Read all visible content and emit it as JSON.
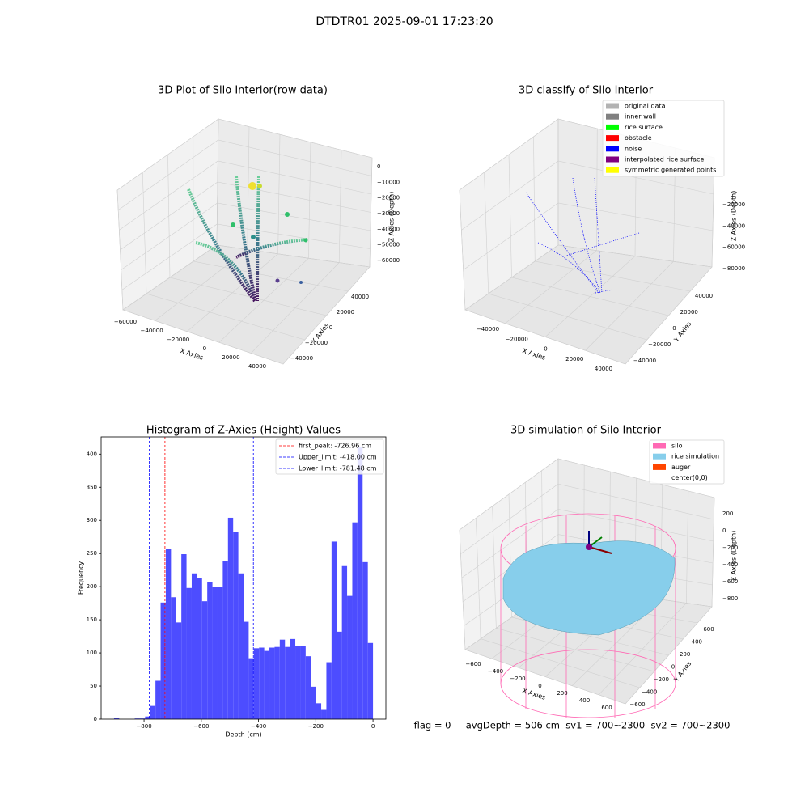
{
  "suptitle": "DTDTR01 2025-09-01 17:23:20",
  "status_text": "flag = 0     avgDepth = 506 cm  sv1 = 700~2300  sv2 = 700~2300",
  "chart_data": [
    {
      "type": "3d",
      "title": "3D Plot of Silo Interior(row data)",
      "xlabel": "X Axies",
      "ylabel": "Y Axies",
      "zlabel": "Z Axies (Depth)",
      "xticks": [
        {
          "value": -60000,
          "label": "−60000"
        },
        {
          "value": -40000,
          "label": "−40000"
        },
        {
          "value": -20000,
          "label": "−20000"
        },
        0,
        20000,
        40000
      ],
      "yticks": [
        {
          "value": -40000,
          "label": "−40000"
        },
        {
          "value": -20000,
          "label": "−20000"
        },
        0,
        20000,
        40000
      ],
      "zticks": [
        0,
        {
          "value": -10000,
          "label": "−10000"
        },
        {
          "value": -20000,
          "label": "−20000"
        },
        {
          "value": -30000,
          "label": "−30000"
        },
        {
          "value": -40000,
          "label": "−40000"
        },
        {
          "value": -50000,
          "label": "−50000"
        },
        {
          "value": -60000,
          "label": "−60000"
        }
      ]
    },
    {
      "type": "3d",
      "title": "3D classify of Silo Interior",
      "xlabel": "X Axies",
      "ylabel": "Y Axies",
      "zlabel": "Z Axies (Depth)",
      "xticks": [
        {
          "value": -40000,
          "label": "−40000"
        },
        {
          "value": -20000,
          "label": "−20000"
        },
        0,
        20000,
        40000
      ],
      "yticks": [
        {
          "value": -40000,
          "label": "−40000"
        },
        {
          "value": -20000,
          "label": "−20000"
        },
        0,
        20000,
        40000
      ],
      "zticks": [
        {
          "value": -20000,
          "label": "−20000"
        },
        {
          "value": -40000,
          "label": "−40000"
        },
        {
          "value": -60000,
          "label": "−60000"
        },
        {
          "value": -80000,
          "label": "−80000"
        }
      ],
      "legend": [
        {
          "name": "original data",
          "color": "#b3b3b3"
        },
        {
          "name": "inner wall",
          "color": "#808080"
        },
        {
          "name": "rice surface",
          "color": "#00ff00"
        },
        {
          "name": "obstacle",
          "color": "#ff0000"
        },
        {
          "name": "noise",
          "color": "#0000ff"
        },
        {
          "name": "interpolated rice surface",
          "color": "#800080"
        },
        {
          "name": "symmetric generated points",
          "color": "#ffff00"
        }
      ]
    },
    {
      "type": "histogram",
      "title": "Histogram of Z-Axies (Height) Values",
      "xlabel": "Depth (cm)",
      "ylabel": "Frequency",
      "color": "#4d4dff",
      "bins": [
        -905,
        -886.9,
        -868.8,
        -850.7,
        -832.6,
        -814.5,
        -796.4,
        -778.3,
        -760.2,
        -742.1,
        -724,
        -705.9,
        -687.8,
        -669.7,
        -651.6,
        -633.5,
        -615.4,
        -597.3,
        -579.2,
        -561.1,
        -543,
        -524.9,
        -506.8,
        -488.7,
        -470.6,
        -452.5,
        -434.4,
        -416.3,
        -398.2,
        -380.1,
        -362,
        -343.9,
        -325.8,
        -307.7,
        -289.6,
        -271.5,
        -253.4,
        -235.3,
        -217.2,
        -199.1,
        -181,
        -162.9,
        -144.8,
        -126.7,
        -108.6,
        -90.5,
        -72.4,
        -54.3,
        -36.2,
        -18.1,
        0
      ],
      "values": [
        2,
        0,
        0,
        0,
        1,
        1,
        4,
        20,
        58,
        176,
        257,
        184,
        146,
        249,
        198,
        220,
        213,
        178,
        207,
        200,
        200,
        239,
        304,
        283,
        220,
        147,
        92,
        107,
        108,
        103,
        108,
        109,
        120,
        109,
        121,
        110,
        111,
        95,
        49,
        24,
        14,
        86,
        268,
        132,
        231,
        186,
        297,
        410,
        237,
        115
      ],
      "xlim": [
        -950,
        45
      ],
      "ylim": [
        0,
        426
      ],
      "xticks": [
        {
          "value": -800,
          "label": "−800"
        },
        {
          "value": -600,
          "label": "−600"
        },
        {
          "value": -400,
          "label": "−400"
        },
        {
          "value": -200,
          "label": "−200"
        },
        0
      ],
      "yticks": [
        0,
        50,
        100,
        150,
        200,
        250,
        300,
        350,
        400
      ],
      "vlines": [
        {
          "name": "first_peak: -726.96 cm",
          "value": -726.96,
          "color": "#ff0000"
        },
        {
          "name": "Upper_limit: -418.00 cm",
          "value": -418,
          "color": "#0000ff"
        },
        {
          "name": "Lower_limit: -781.48 cm",
          "value": -781.48,
          "color": "#0000ff"
        }
      ]
    },
    {
      "type": "3d",
      "title": "3D simulation of Silo Interior",
      "xlabel": "X Axies",
      "ylabel": "Y Axies",
      "zlabel": "Z Axies (Depth)",
      "xticks": [
        {
          "value": -600,
          "label": "−600"
        },
        {
          "value": -400,
          "label": "−400"
        },
        {
          "value": -200,
          "label": "−200"
        },
        0,
        200,
        400,
        600
      ],
      "yticks": [
        {
          "value": -600,
          "label": "−600"
        },
        {
          "value": -400,
          "label": "−400"
        },
        {
          "value": -200,
          "label": "−200"
        },
        0,
        200,
        400,
        600
      ],
      "zticks": [
        200,
        0,
        {
          "value": -200,
          "label": "−200"
        },
        {
          "value": -400,
          "label": "−400"
        },
        {
          "value": -600,
          "label": "−600"
        },
        {
          "value": -800,
          "label": "−800"
        }
      ],
      "legend": [
        {
          "name": "silo",
          "color": "#ff69b4"
        },
        {
          "name": "rice simulation",
          "color": "#87ceeb"
        },
        {
          "name": "auger",
          "color": "#ff4500"
        },
        {
          "name": "center(0,0)",
          "color": "#ffffff"
        }
      ]
    }
  ]
}
